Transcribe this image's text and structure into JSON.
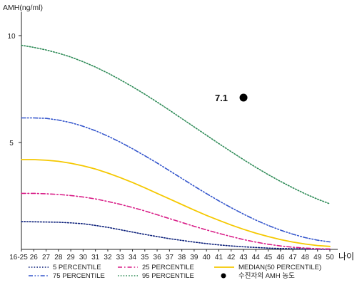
{
  "chart_data": {
    "type": "line",
    "ylabel": "AMH(ng/ml)",
    "xlabel": "나이",
    "yticks": [
      5,
      10
    ],
    "ylim": [
      0,
      10.6
    ],
    "x_tick_labels": [
      "16-25",
      "26",
      "27",
      "28",
      "29",
      "30",
      "31",
      "32",
      "33",
      "34",
      "35",
      "36",
      "37",
      "38",
      "39",
      "40",
      "41",
      "42",
      "43",
      "44",
      "45",
      "46",
      "47",
      "48",
      "49",
      "50"
    ],
    "series": [
      {
        "name": "5 PERCENTILE",
        "color": "#0b1f7a",
        "style": "dotted",
        "values": [
          1.3,
          1.29,
          1.28,
          1.27,
          1.24,
          1.2,
          1.12,
          1.03,
          0.92,
          0.81,
          0.7,
          0.6,
          0.5,
          0.42,
          0.34,
          0.27,
          0.21,
          0.16,
          0.12,
          0.09,
          0.06,
          0.04,
          0.03,
          0.02,
          0.01,
          0.0
        ]
      },
      {
        "name": "25 PERCENTILE",
        "color": "#d81b86",
        "style": "dashdot",
        "values": [
          2.62,
          2.62,
          2.6,
          2.57,
          2.52,
          2.45,
          2.36,
          2.24,
          2.11,
          1.96,
          1.8,
          1.62,
          1.44,
          1.26,
          1.08,
          0.91,
          0.75,
          0.6,
          0.46,
          0.34,
          0.24,
          0.16,
          0.1,
          0.06,
          0.03,
          0.02
        ]
      },
      {
        "name": "MEDIAN(50 PERCENTILE)",
        "color": "#f5c800",
        "style": "solid",
        "values": [
          4.2,
          4.2,
          4.17,
          4.12,
          4.03,
          3.91,
          3.76,
          3.57,
          3.36,
          3.13,
          2.88,
          2.62,
          2.36,
          2.1,
          1.84,
          1.59,
          1.36,
          1.14,
          0.94,
          0.76,
          0.6,
          0.46,
          0.34,
          0.25,
          0.18,
          0.14
        ]
      },
      {
        "name": "75 PERCENTILE",
        "color": "#3355cc",
        "style": "dashdotdot",
        "values": [
          6.15,
          6.15,
          6.13,
          6.05,
          5.93,
          5.76,
          5.55,
          5.3,
          5.02,
          4.71,
          4.38,
          4.04,
          3.68,
          3.32,
          2.96,
          2.61,
          2.27,
          1.95,
          1.65,
          1.37,
          1.12,
          0.9,
          0.71,
          0.55,
          0.43,
          0.35
        ]
      },
      {
        "name": "95 PERCENTILE",
        "color": "#2e8b57",
        "style": "dotted",
        "values": [
          9.55,
          9.45,
          9.33,
          9.18,
          9.0,
          8.78,
          8.53,
          8.25,
          7.94,
          7.61,
          7.26,
          6.89,
          6.51,
          6.12,
          5.73,
          5.34,
          4.95,
          4.57,
          4.2,
          3.84,
          3.5,
          3.18,
          2.88,
          2.6,
          2.35,
          2.13
        ]
      }
    ],
    "patient": {
      "label": "수진자의 AMH 농도",
      "x_index": 18,
      "value": 7.1,
      "value_label": "7.1"
    },
    "legend": {
      "placement": "bottom",
      "columns": 3
    },
    "grid": false
  }
}
